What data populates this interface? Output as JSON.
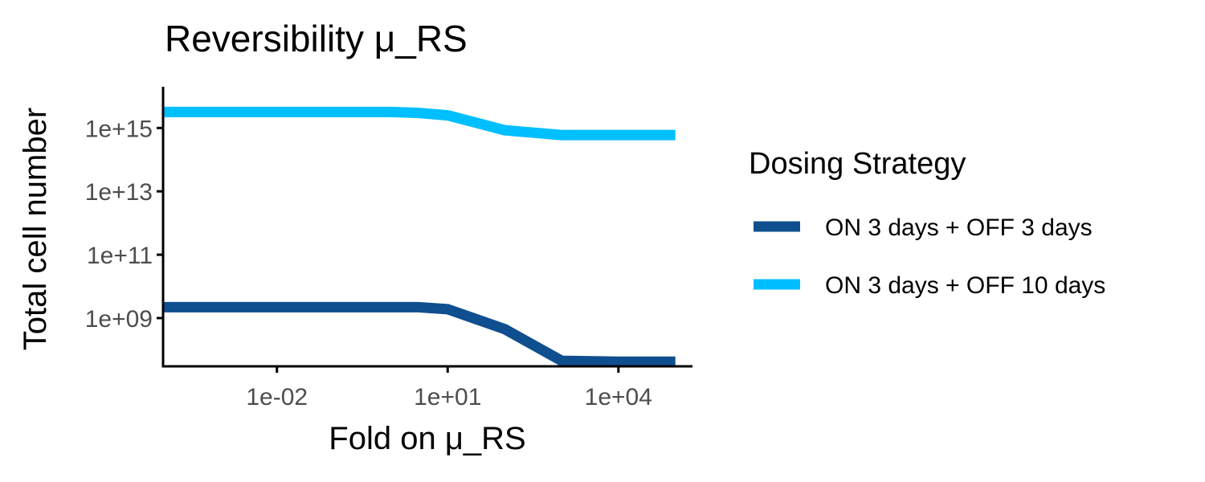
{
  "chart_data": {
    "type": "line",
    "title": "Reversibility  μ_RS",
    "xlabel": "Fold on  μ_RS",
    "ylabel": "Total cell number",
    "x_scale": "log10",
    "y_scale": "log10",
    "xlim": [
      0.0001,
      200000
    ],
    "ylim": [
      30000000.0,
      2e+16
    ],
    "x_ticks": [
      {
        "value": 0.01,
        "label": "1e-02"
      },
      {
        "value": 10,
        "label": "1e+01"
      },
      {
        "value": 10000,
        "label": "1e+04"
      }
    ],
    "y_ticks": [
      {
        "value": 1000000000.0,
        "label": "1e+09"
      },
      {
        "value": 100000000000.0,
        "label": "1e+11"
      },
      {
        "value": 10000000000000.0,
        "label": "1e+13"
      },
      {
        "value": 1000000000000000.0,
        "label": "1e+15"
      }
    ],
    "grid": false,
    "legend": {
      "title": "Dosing Strategy",
      "position": "right"
    },
    "series": [
      {
        "name": "ON 3 days + OFF 3 days",
        "color": "#0f4f8f",
        "x": [
          0.0001,
          0.001,
          0.01,
          0.1,
          1,
          3,
          10,
          100,
          1000,
          10000,
          100000
        ],
        "y": [
          2200000000.0,
          2200000000.0,
          2200000000.0,
          2200000000.0,
          2200000000.0,
          2200000000.0,
          1900000000.0,
          450000000.0,
          45000000.0,
          42000000.0,
          42000000.0
        ]
      },
      {
        "name": "ON 3 days + OFF 10 days",
        "color": "#00bfff",
        "x": [
          0.0001,
          0.001,
          0.01,
          0.1,
          1,
          3,
          10,
          100,
          1000,
          10000,
          100000
        ],
        "y": [
          3200000000000000.0,
          3200000000000000.0,
          3200000000000000.0,
          3200000000000000.0,
          3200000000000000.0,
          3000000000000000.0,
          2500000000000000.0,
          850000000000000.0,
          600000000000000.0,
          600000000000000.0,
          600000000000000.0
        ]
      }
    ]
  }
}
